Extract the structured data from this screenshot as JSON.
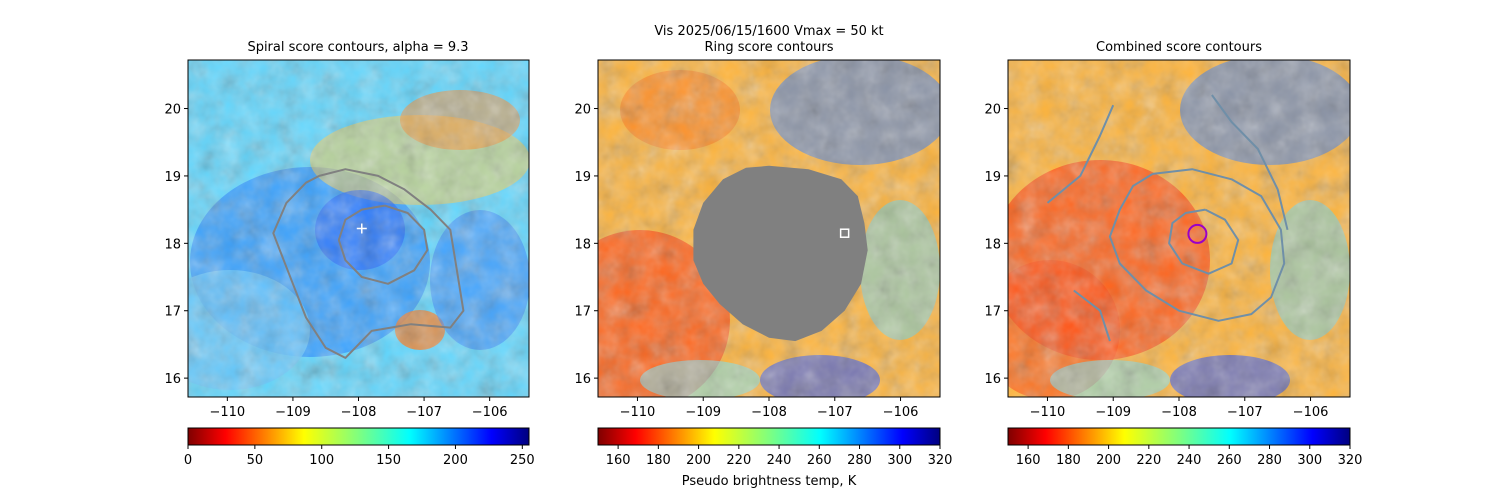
{
  "figure": {
    "suptitle": "Vis  2025/06/15/1600    Vmax = 50 kt"
  },
  "chart_data": [
    {
      "type": "heatmap",
      "title": "Spiral score contours, alpha =  9.3",
      "xlim": [
        -110.6,
        -105.4
      ],
      "ylim": [
        15.72,
        20.72
      ],
      "xticks": [
        "−110",
        "−109",
        "−108",
        "−107",
        "−106"
      ],
      "xtick_values": [
        -110,
        -109,
        -108,
        -107,
        -106
      ],
      "yticks": [
        "16",
        "17",
        "18",
        "19",
        "20"
      ],
      "ytick_values": [
        16,
        17,
        18,
        19,
        20
      ],
      "colormap": "jet_reversed",
      "colorbar": {
        "range": [
          0,
          255
        ],
        "ticks": [
          "0",
          "50",
          "100",
          "150",
          "200",
          "250"
        ],
        "tick_values": [
          0,
          50,
          100,
          150,
          200,
          250
        ],
        "label": ""
      },
      "center_marker": {
        "shape": "plus",
        "color": "#ffffff",
        "x": -107.95,
        "y": 18.22
      },
      "contours": [
        {
          "color": "#808080",
          "points": [
            [
              -108.6,
              19.0
            ],
            [
              -108.2,
              19.1
            ],
            [
              -107.7,
              19.0
            ],
            [
              -107.3,
              18.8
            ],
            [
              -106.9,
              18.5
            ],
            [
              -106.6,
              18.2
            ],
            [
              -106.5,
              17.6
            ],
            [
              -106.4,
              17.0
            ],
            [
              -106.6,
              16.75
            ],
            [
              -107.2,
              16.8
            ],
            [
              -107.8,
              16.7
            ],
            [
              -108.2,
              16.3
            ],
            [
              -108.5,
              16.45
            ],
            [
              -108.8,
              16.9
            ],
            [
              -109.0,
              17.4
            ],
            [
              -109.2,
              17.9
            ],
            [
              -109.3,
              18.15
            ],
            [
              -109.1,
              18.6
            ],
            [
              -108.8,
              18.9
            ],
            [
              -108.6,
              19.0
            ]
          ]
        },
        {
          "color": "#808080",
          "points": [
            [
              -107.6,
              18.56
            ],
            [
              -107.25,
              18.45
            ],
            [
              -107.0,
              18.2
            ],
            [
              -106.95,
              17.9
            ],
            [
              -107.15,
              17.6
            ],
            [
              -107.55,
              17.4
            ],
            [
              -107.95,
              17.5
            ],
            [
              -108.2,
              17.75
            ],
            [
              -108.3,
              18.05
            ],
            [
              -108.2,
              18.35
            ],
            [
              -107.95,
              18.5
            ],
            [
              -107.6,
              18.56
            ]
          ]
        }
      ]
    },
    {
      "type": "heatmap",
      "title": "Ring score contours",
      "xlim": [
        -110.6,
        -105.4
      ],
      "ylim": [
        15.72,
        20.72
      ],
      "xticks": [
        "−110",
        "−109",
        "−108",
        "−107",
        "−106"
      ],
      "xtick_values": [
        -110,
        -109,
        -108,
        -107,
        -106
      ],
      "yticks": [
        "16",
        "17",
        "18",
        "19",
        "20"
      ],
      "ytick_values": [
        16,
        17,
        18,
        19,
        20
      ],
      "colormap": "jet_reversed",
      "colorbar": {
        "range": [
          150,
          320
        ],
        "ticks": [
          "160",
          "180",
          "200",
          "220",
          "240",
          "260",
          "280",
          "300",
          "320"
        ],
        "tick_values": [
          160,
          180,
          200,
          220,
          240,
          260,
          280,
          300,
          320
        ],
        "label": "Pseudo brightness temp, K"
      },
      "masked_region_color": "#808080",
      "masked_region": [
        [
          -108.0,
          19.15
        ],
        [
          -107.4,
          19.1
        ],
        [
          -106.9,
          18.95
        ],
        [
          -106.65,
          18.7
        ],
        [
          -106.55,
          18.3
        ],
        [
          -106.5,
          17.9
        ],
        [
          -106.6,
          17.4
        ],
        [
          -106.85,
          17.0
        ],
        [
          -107.2,
          16.7
        ],
        [
          -107.6,
          16.55
        ],
        [
          -108.0,
          16.6
        ],
        [
          -108.4,
          16.8
        ],
        [
          -108.75,
          17.1
        ],
        [
          -109.0,
          17.4
        ],
        [
          -109.15,
          17.75
        ],
        [
          -109.15,
          18.2
        ],
        [
          -109.0,
          18.6
        ],
        [
          -108.7,
          18.95
        ],
        [
          -108.35,
          19.12
        ],
        [
          -108.0,
          19.15
        ]
      ],
      "center_marker": {
        "shape": "square",
        "color": "#ffffff",
        "x": -106.85,
        "y": 18.15
      }
    },
    {
      "type": "heatmap",
      "title": "Combined score contours",
      "xlim": [
        -110.6,
        -105.4
      ],
      "ylim": [
        15.72,
        20.72
      ],
      "xticks": [
        "−110",
        "−109",
        "−108",
        "−107",
        "−106"
      ],
      "xtick_values": [
        -110,
        -109,
        -108,
        -107,
        -106
      ],
      "yticks": [
        "16",
        "17",
        "18",
        "19",
        "20"
      ],
      "ytick_values": [
        16,
        17,
        18,
        19,
        20
      ],
      "colormap": "jet_reversed",
      "colorbar": {
        "range": [
          150,
          320
        ],
        "ticks": [
          "160",
          "180",
          "200",
          "220",
          "240",
          "260",
          "280",
          "300",
          "320"
        ],
        "tick_values": [
          160,
          180,
          200,
          220,
          240,
          260,
          280,
          300,
          320
        ],
        "label": ""
      },
      "center_marker": {
        "shape": "circle",
        "color": "#9a00c8",
        "x": -107.72,
        "y": 18.14
      },
      "contours": [
        {
          "color": "#6f8fa8",
          "points": [
            [
              -108.4,
              19.03
            ],
            [
              -107.8,
              19.1
            ],
            [
              -107.2,
              18.95
            ],
            [
              -106.75,
              18.7
            ],
            [
              -106.45,
              18.2
            ],
            [
              -106.4,
              17.7
            ],
            [
              -106.6,
              17.2
            ],
            [
              -106.9,
              16.95
            ],
            [
              -107.4,
              16.85
            ],
            [
              -108.0,
              17.0
            ],
            [
              -108.5,
              17.3
            ],
            [
              -108.9,
              17.7
            ],
            [
              -109.05,
              18.1
            ],
            [
              -108.9,
              18.5
            ],
            [
              -108.7,
              18.85
            ],
            [
              -108.4,
              19.03
            ]
          ]
        },
        {
          "color": "#6f8fa8",
          "points": [
            [
              -107.6,
              18.5
            ],
            [
              -107.3,
              18.35
            ],
            [
              -107.1,
              18.05
            ],
            [
              -107.2,
              17.7
            ],
            [
              -107.55,
              17.55
            ],
            [
              -107.95,
              17.7
            ],
            [
              -108.15,
              18.0
            ],
            [
              -108.1,
              18.3
            ],
            [
              -107.9,
              18.45
            ],
            [
              -107.6,
              18.5
            ]
          ]
        },
        {
          "color": "#6f8fa8",
          "points": [
            [
              -110.0,
              18.6
            ],
            [
              -109.5,
              19.0
            ],
            [
              -109.2,
              19.6
            ],
            [
              -109.0,
              20.05
            ]
          ]
        },
        {
          "color": "#6f8fa8",
          "points": [
            [
              -107.5,
              20.2
            ],
            [
              -107.2,
              19.8
            ],
            [
              -106.8,
              19.4
            ],
            [
              -106.5,
              18.8
            ],
            [
              -106.35,
              18.2
            ]
          ]
        },
        {
          "color": "#6f8fa8",
          "points": [
            [
              -109.6,
              17.3
            ],
            [
              -109.2,
              17.0
            ],
            [
              -109.05,
              16.55
            ]
          ]
        }
      ]
    }
  ]
}
